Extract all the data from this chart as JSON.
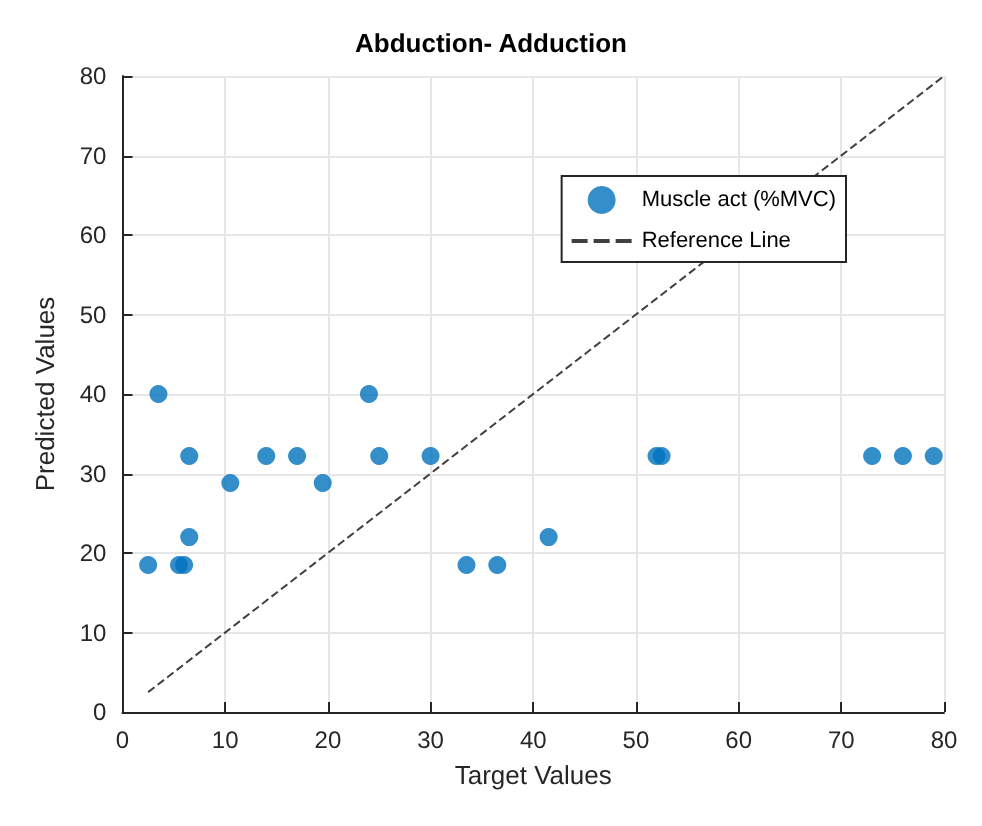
{
  "chart_data": {
    "type": "scatter",
    "title": "Abduction- Adduction",
    "xlabel": "Target Values",
    "ylabel": "Predicted Values",
    "xlim": [
      0,
      80
    ],
    "ylim": [
      0,
      80
    ],
    "xticks": [
      0,
      10,
      20,
      30,
      40,
      50,
      60,
      70,
      80
    ],
    "yticks": [
      0,
      10,
      20,
      30,
      40,
      50,
      60,
      70,
      80
    ],
    "grid": true,
    "legend": "top right",
    "marker": "circle",
    "series": [
      {
        "name": "Muscle act (%MVC)",
        "color": "#0072bd",
        "x": [
          2.5,
          3.5,
          5.5,
          6,
          6.5,
          6.5,
          10.5,
          14,
          17,
          19.5,
          24,
          25,
          30,
          33.5,
          36.5,
          41.5,
          52,
          52.5,
          73,
          76,
          79
        ],
        "values": [
          18.5,
          40,
          18.5,
          18.5,
          32.2,
          22,
          28.8,
          32.2,
          32.2,
          28.8,
          40,
          32.2,
          32.2,
          18.5,
          18.5,
          22,
          32.2,
          32.2,
          32.2,
          32.2,
          32.2
        ]
      },
      {
        "name": "Reference Line",
        "type": "line",
        "color": "#404040",
        "line_style": "dashed",
        "marker": "none",
        "x": [
          2.5,
          80
        ],
        "values": [
          2.5,
          80
        ]
      }
    ]
  }
}
